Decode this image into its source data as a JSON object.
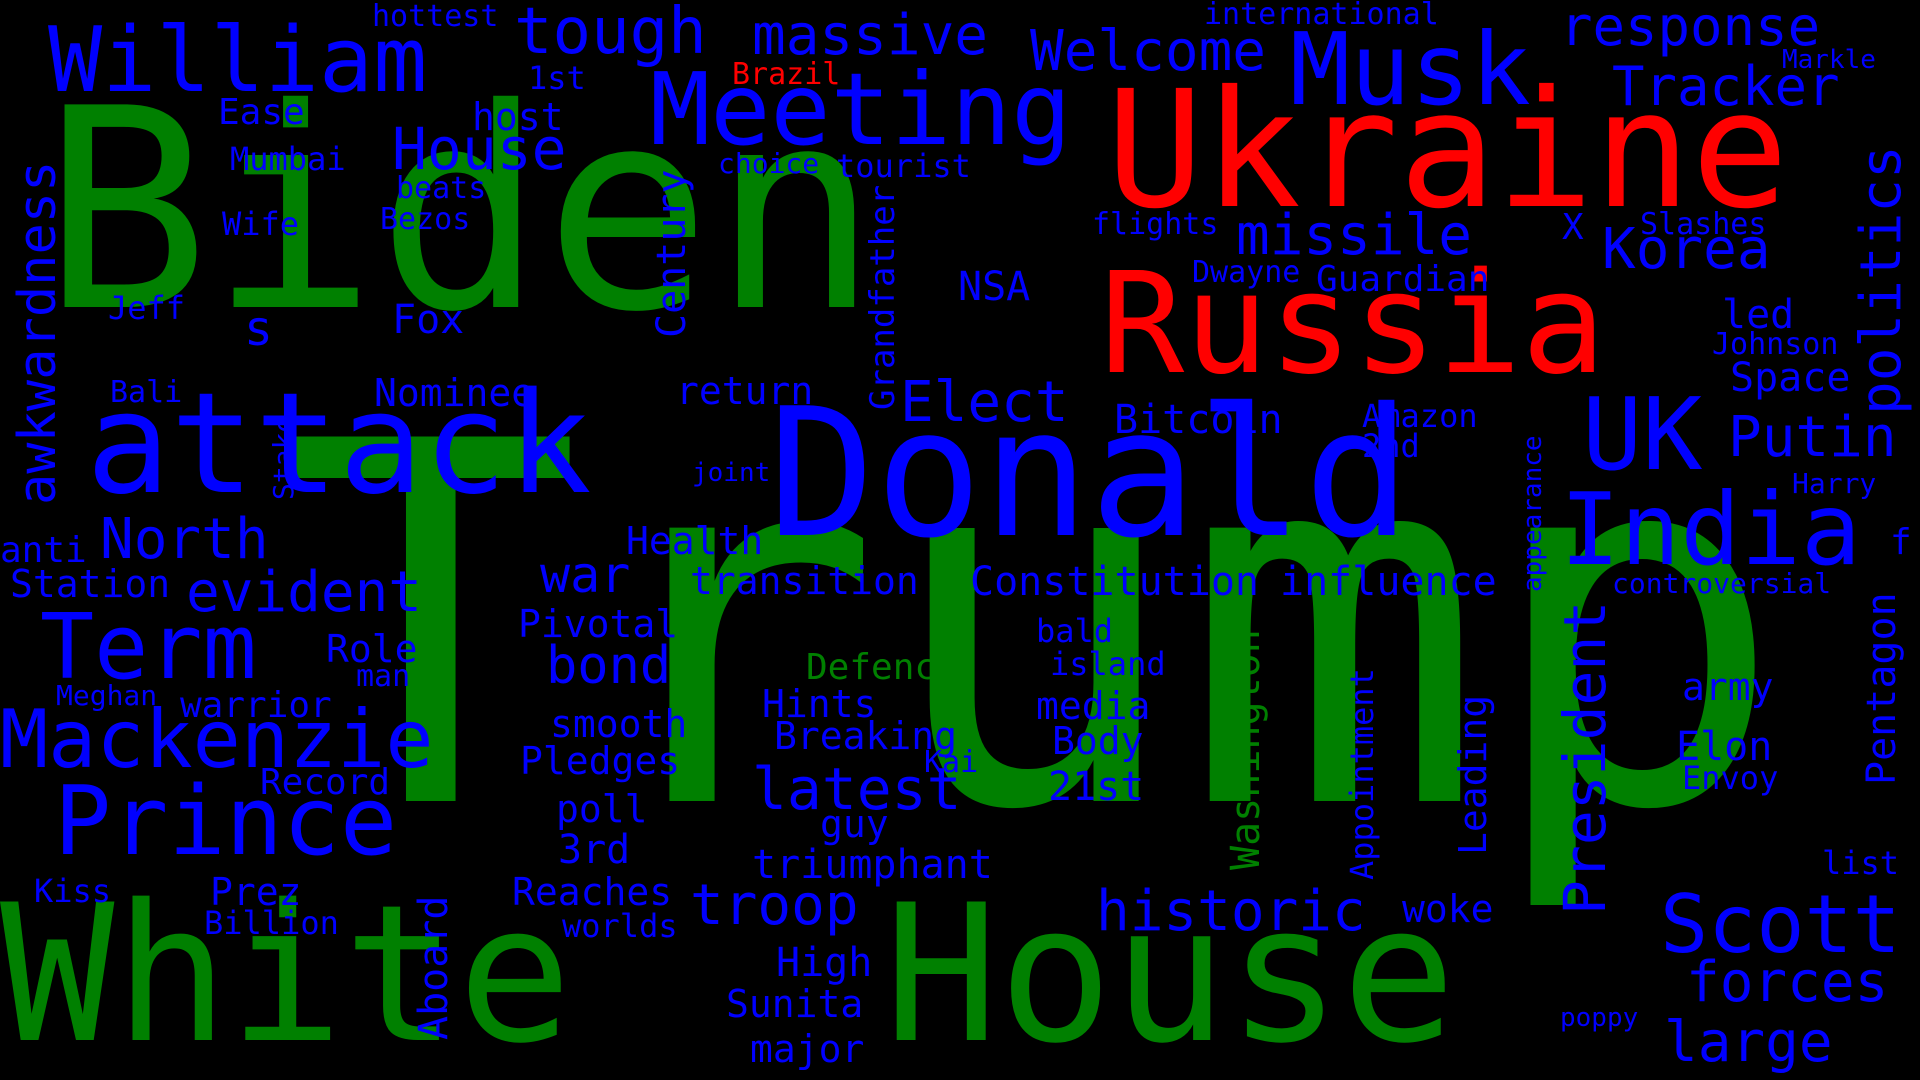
{
  "colors": {
    "background": "#000000",
    "green": "#008000",
    "blue": "#0000ff",
    "red": "#ff0000"
  },
  "words": {
    "trump": "Trump",
    "biden": "Biden",
    "white": "White",
    "house": "House",
    "ukraine": "Ukraine",
    "russia": "Russia",
    "donald": "Donald",
    "attack": "attack",
    "meeting": "Meeting",
    "musk": "Musk",
    "william": "William",
    "tough": "tough",
    "massive": "massive",
    "welcome": "Welcome",
    "response": "response",
    "tracker": "Tracker",
    "hottest": "hottest",
    "international": "international",
    "brazil": "Brazil",
    "markle": "Markle",
    "first": "1st",
    "ease": "Ease",
    "host": "host",
    "house_small": "House",
    "mumbai": "Mumbai",
    "choice": "choice",
    "tourist": "tourist",
    "beats": "beats",
    "wife": "Wife",
    "bezos": "Bezos",
    "flights": "flights",
    "missile": "missile",
    "x": "X",
    "slashes": "Slashes",
    "korea": "Korea",
    "politics": "politics",
    "awkwardness": "awkwardness",
    "century": "Century",
    "grandfather": "Grandfather",
    "dwayne": "Dwayne",
    "guardian": "Guardian",
    "nsa": "NSA",
    "jeff": "Jeff",
    "s": "s",
    "fox": "Fox",
    "led": "led",
    "johnson": "Johnson",
    "space": "Space",
    "bali": "Bali",
    "nominee": "Nominee",
    "return": "return",
    "elect": "Elect",
    "bitcoin": "Bitcoin",
    "amazon": "Amazon",
    "second": "2nd",
    "uk": "UK",
    "putin": "Putin",
    "stake": "Stake",
    "joint": "joint",
    "appearance": "appearance",
    "harry": "Harry",
    "north": "North",
    "health": "Health",
    "india": "India",
    "f": "f",
    "anti": "anti",
    "station": "Station",
    "evident": "evident",
    "war": "war",
    "transition": "transition",
    "constitution": "Constitution",
    "influence": "influence",
    "controversial": "controversial",
    "term": "Term",
    "pivotal": "Pivotal",
    "bald": "bald",
    "washington": "Washington",
    "president": "President",
    "role": "Role",
    "man": "man",
    "bond": "bond",
    "defence": "Defence",
    "island": "island",
    "appointment": "Appointment",
    "leading": "Leading",
    "army": "army",
    "pentagon": "Pentagon",
    "meghan": "Meghan",
    "warrior": "warrior",
    "hints": "Hints",
    "media": "media",
    "mackenzie": "Mackenzie",
    "smooth": "smooth",
    "breaking": "Breaking",
    "body": "Body",
    "elon": "Elon",
    "record": "Record",
    "pledges": "Pledges",
    "kai": "Kai",
    "envoy": "Envoy",
    "latest": "latest",
    "prince": "Prince",
    "poll": "poll",
    "twentyfirst": "21st",
    "guy": "guy",
    "third": "3rd",
    "triumphant": "triumphant",
    "list": "list",
    "kiss": "Kiss",
    "prez": "Prez",
    "reaches": "Reaches",
    "troop": "troop",
    "historic": "historic",
    "woke": "woke",
    "scott": "Scott",
    "billion": "Billion",
    "worlds": "worlds",
    "aboard": "Aboard",
    "high": "High",
    "forces": "forces",
    "sunita": "Sunita",
    "poppy": "poppy",
    "major": "major",
    "large": "large"
  }
}
